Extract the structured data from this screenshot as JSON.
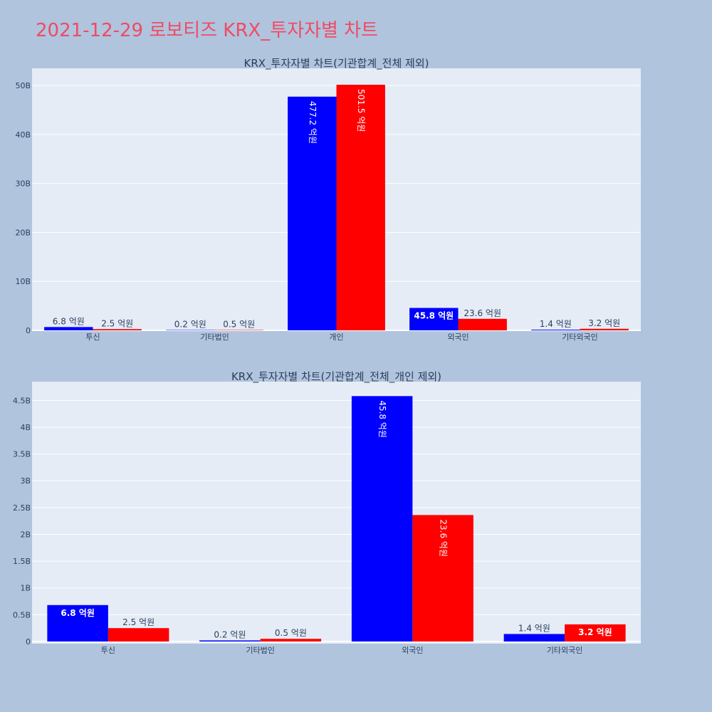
{
  "title": "2021-12-29 로보티즈 KRX_투자자별 차트",
  "colors": {
    "buy": "#0000ff",
    "sell": "#ff0000",
    "plot_bg": "#e5ecf6",
    "page_bg": "#b0c4de",
    "grid": "#ffffff"
  },
  "chart_data": [
    {
      "type": "bar",
      "title": "KRX_투자자별 차트(기관합계_전체 제외)",
      "categories": [
        "투신",
        "기타법인",
        "개인",
        "외국인",
        "기타외국인"
      ],
      "series": [
        {
          "values": [
            680000000,
            20000000,
            47720000000,
            4580000000,
            140000000
          ],
          "labels": [
            "6.8 억원",
            "0.2 억원",
            "477.2 억원",
            "45.8 억원",
            "1.4 억원"
          ],
          "color": "#0000ff"
        },
        {
          "values": [
            250000000,
            50000000,
            50150000000,
            2360000000,
            320000000
          ],
          "labels": [
            "2.5 억원",
            "0.5 억원",
            "501.5 억원",
            "23.6 억원",
            "3.2 억원"
          ],
          "color": "#ff0000"
        }
      ],
      "ylim": [
        0,
        53500000000
      ],
      "yticks": [
        0,
        10000000000,
        20000000000,
        30000000000,
        40000000000,
        50000000000
      ],
      "ytick_labels": [
        "0",
        "10B",
        "20B",
        "30B",
        "40B",
        "50B"
      ],
      "grid": true
    },
    {
      "type": "bar",
      "title": "KRX_투자자별 차트(기관합계_전체_개인 제외)",
      "categories": [
        "투신",
        "기타법인",
        "외국인",
        "기타외국인"
      ],
      "series": [
        {
          "values": [
            680000000,
            20000000,
            4580000000,
            140000000
          ],
          "labels": [
            "6.8 억원",
            "0.2 억원",
            "45.8 억원",
            "1.4 억원"
          ],
          "color": "#0000ff"
        },
        {
          "values": [
            250000000,
            50000000,
            2360000000,
            320000000
          ],
          "labels": [
            "2.5 억원",
            "0.5 억원",
            "23.6 억원",
            "3.2 억원"
          ],
          "color": "#ff0000"
        }
      ],
      "ylim": [
        -40000000,
        4850000000
      ],
      "yticks": [
        0,
        500000000,
        1000000000,
        1500000000,
        2000000000,
        2500000000,
        3000000000,
        3500000000,
        4000000000,
        4500000000
      ],
      "ytick_labels": [
        "0",
        "0.5B",
        "1B",
        "1.5B",
        "2B",
        "2.5B",
        "3B",
        "3.5B",
        "4B",
        "4.5B"
      ],
      "grid": true
    }
  ]
}
